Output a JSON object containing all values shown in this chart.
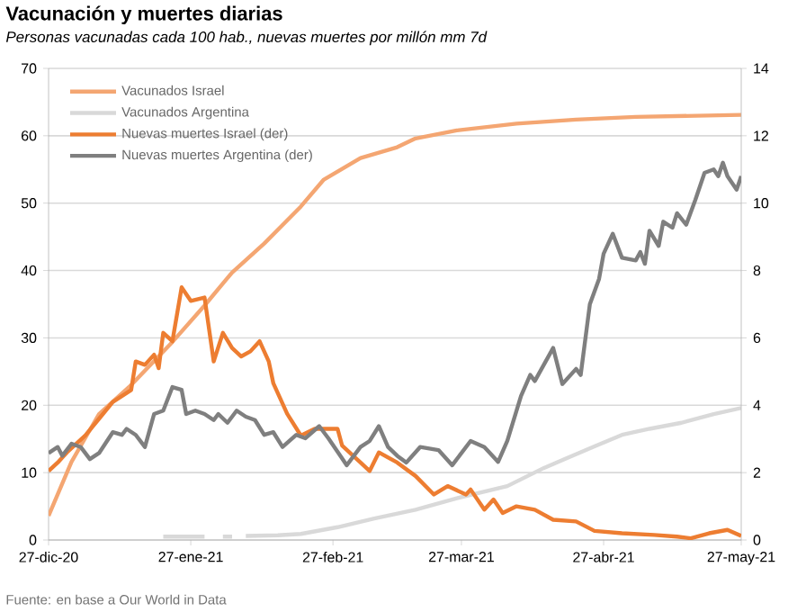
{
  "chart_data": {
    "type": "line",
    "title": "Vacunación y muertes diarias",
    "subtitle": "Personas vacunadas cada 100 hab., nuevas muertes por millón mm 7d",
    "annotations": [
      "Fuente: en base a Our World in Data"
    ],
    "xlim": [
      "2020-12-27",
      "2021-05-27"
    ],
    "xticks": [
      {
        "value": "2020-12-27",
        "label": "27-dic-20"
      },
      {
        "value": "2021-01-27",
        "label": "27-ene-21"
      },
      {
        "value": "2021-02-27",
        "label": "27-feb-21"
      },
      {
        "value": "2021-03-27",
        "label": "27-mar-21"
      },
      {
        "value": "2021-04-27",
        "label": "27-abr-21"
      },
      {
        "value": "2021-05-27",
        "label": "27-may-21"
      }
    ],
    "ylim": [
      0,
      70
    ],
    "yticks": [
      0,
      10,
      20,
      30,
      40,
      50,
      60,
      70
    ],
    "y2lim": [
      0,
      14
    ],
    "y2ticks": [
      0,
      2,
      4,
      6,
      8,
      10,
      12,
      14
    ],
    "grid": "y",
    "legend": "top left",
    "series": [
      {
        "name": "Vacunados Israel",
        "color": "#f4a672",
        "x": [
          "2020-12-27",
          "2021-01-01",
          "2021-01-07",
          "2021-01-14",
          "2021-01-23",
          "2021-01-30",
          "2021-02-05",
          "2021-02-12",
          "2021-02-20",
          "2021-02-25",
          "2021-03-05",
          "2021-03-13",
          "2021-03-17",
          "2021-03-26",
          "2021-04-08",
          "2021-04-21",
          "2021-05-04",
          "2021-05-27"
        ],
        "values": [
          3.6,
          11.6,
          18.7,
          23,
          29.4,
          34.8,
          39.7,
          44,
          49.5,
          53.5,
          56.7,
          58.3,
          59.6,
          60.8,
          61.8,
          62.4,
          62.8,
          63.1
        ]
      },
      {
        "name": "Vacunados Argentina",
        "color": "#d9d9d9",
        "x": [
          "2021-01-21",
          "2021-01-30",
          "2021-02-01",
          "2021-02-03",
          "2021-02-05",
          "2021-02-06",
          "2021-02-08",
          "2021-02-15",
          "2021-02-20",
          "2021-02-28",
          "2021-03-08",
          "2021-03-17",
          "2021-03-26",
          "2021-04-06",
          "2021-04-14",
          "2021-04-25",
          "2021-05-01",
          "2021-05-07",
          "2021-05-14",
          "2021-05-21",
          "2021-05-27"
        ],
        "values": [
          0.5,
          0.5,
          null,
          0.5,
          0.5,
          null,
          0.6,
          0.7,
          0.9,
          1.9,
          3.2,
          4.5,
          6.2,
          8.0,
          10.7,
          13.9,
          15.6,
          16.5,
          17.4,
          18.7,
          19.6
        ]
      },
      {
        "name": "Nuevas muertes Israel (der)",
        "color": "#ed7d31",
        "axis": "y2",
        "x": [
          "2020-12-27",
          "2020-12-29",
          "2020-12-31",
          "2021-01-04",
          "2021-01-07",
          "2021-01-10",
          "2021-01-14",
          "2021-01-15",
          "2021-01-17",
          "2021-01-19",
          "2021-01-20",
          "2021-01-21",
          "2021-01-23",
          "2021-01-25",
          "2021-01-27",
          "2021-01-30",
          "2021-02-01",
          "2021-02-03",
          "2021-02-05",
          "2021-02-07",
          "2021-02-09",
          "2021-02-11",
          "2021-02-13",
          "2021-02-14",
          "2021-02-17",
          "2021-02-20",
          "2021-02-23",
          "2021-02-28",
          "2021-03-01",
          "2021-03-05",
          "2021-03-07",
          "2021-03-09",
          "2021-03-13",
          "2021-03-17",
          "2021-03-21",
          "2021-03-24",
          "2021-03-28",
          "2021-03-29",
          "2021-04-01",
          "2021-04-03",
          "2021-04-05",
          "2021-04-08",
          "2021-04-12",
          "2021-04-16",
          "2021-04-21",
          "2021-04-25",
          "2021-05-01",
          "2021-05-08",
          "2021-05-13",
          "2021-05-16",
          "2021-05-20",
          "2021-05-24",
          "2021-05-27"
        ],
        "values": [
          2.05,
          2.3,
          2.6,
          3.1,
          3.6,
          4.1,
          4.45,
          5.3,
          5.2,
          5.5,
          5.1,
          6.15,
          5.9,
          7.5,
          7.1,
          7.2,
          5.3,
          6.15,
          5.7,
          5.45,
          5.6,
          5.9,
          5.3,
          4.65,
          3.75,
          3.1,
          3.3,
          3.3,
          2.8,
          2.3,
          2.05,
          2.6,
          2.3,
          1.9,
          1.35,
          1.6,
          1.35,
          1.5,
          0.9,
          1.2,
          0.8,
          1.0,
          0.9,
          0.6,
          0.55,
          0.27,
          0.2,
          0.15,
          0.1,
          0.05,
          0.2,
          0.3,
          0.12
        ]
      },
      {
        "name": "Nuevas muertes Argentina (der)",
        "color": "#7f7f7f",
        "axis": "y2",
        "x": [
          "2020-12-27",
          "2020-12-29",
          "2020-12-30",
          "2021-01-01",
          "2021-01-03",
          "2021-01-05",
          "2021-01-07",
          "2021-01-10",
          "2021-01-12",
          "2021-01-13",
          "2021-01-15",
          "2021-01-17",
          "2021-01-19",
          "2021-01-21",
          "2021-01-23",
          "2021-01-25",
          "2021-01-26",
          "2021-01-28",
          "2021-01-30",
          "2021-02-01",
          "2021-02-02",
          "2021-02-04",
          "2021-02-06",
          "2021-02-08",
          "2021-02-10",
          "2021-02-12",
          "2021-02-14",
          "2021-02-16",
          "2021-02-19",
          "2021-02-21",
          "2021-02-24",
          "2021-02-26",
          "2021-03-02",
          "2021-03-05",
          "2021-03-07",
          "2021-03-09",
          "2021-03-11",
          "2021-03-13",
          "2021-03-15",
          "2021-03-18",
          "2021-03-22",
          "2021-03-25",
          "2021-03-29",
          "2021-04-01",
          "2021-04-04",
          "2021-04-06",
          "2021-04-09",
          "2021-04-11",
          "2021-04-12",
          "2021-04-16",
          "2021-04-18",
          "2021-04-21",
          "2021-04-22",
          "2021-04-24",
          "2021-04-26",
          "2021-04-27",
          "2021-04-29",
          "2021-05-01",
          "2021-05-04",
          "2021-05-05",
          "2021-05-06",
          "2021-05-07",
          "2021-05-09",
          "2021-05-10",
          "2021-05-12",
          "2021-05-13",
          "2021-05-15",
          "2021-05-17",
          "2021-05-19",
          "2021-05-21",
          "2021-05-22",
          "2021-05-23",
          "2021-05-24",
          "2021-05-26",
          "2021-05-27"
        ],
        "values": [
          2.58,
          2.76,
          2.5,
          2.86,
          2.76,
          2.4,
          2.58,
          3.2,
          3.12,
          3.3,
          3.12,
          2.76,
          3.74,
          3.84,
          4.54,
          4.46,
          3.74,
          3.84,
          3.74,
          3.56,
          3.74,
          3.48,
          3.84,
          3.66,
          3.56,
          3.12,
          3.2,
          2.76,
          3.12,
          3.02,
          3.38,
          3.02,
          2.22,
          2.76,
          2.94,
          3.38,
          2.76,
          2.5,
          2.3,
          2.76,
          2.67,
          2.22,
          2.94,
          2.76,
          2.32,
          2.94,
          4.28,
          4.9,
          4.72,
          5.7,
          4.63,
          5.08,
          4.9,
          7.0,
          7.75,
          8.5,
          9.09,
          8.38,
          8.3,
          8.55,
          8.2,
          9.18,
          8.73,
          9.45,
          9.27,
          9.7,
          9.36,
          10.1,
          10.9,
          11.0,
          10.8,
          11.2,
          10.8,
          10.4,
          10.8
        ]
      }
    ]
  }
}
